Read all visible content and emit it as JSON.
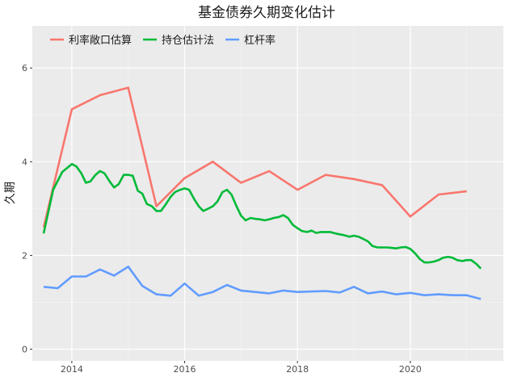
{
  "chart_data": {
    "type": "line",
    "title": "基金债券久期变化估计",
    "xlabel": "",
    "ylabel": "久期",
    "xlim": [
      2013.3,
      2021.65
    ],
    "ylim": [
      -0.25,
      6.9
    ],
    "x_ticks": [
      2014,
      2016,
      2018,
      2020
    ],
    "x_tick_labels": [
      "2014",
      "2016",
      "2018",
      "2020"
    ],
    "y_ticks": [
      0,
      2,
      4,
      6
    ],
    "y_tick_labels": [
      "0",
      "2",
      "4",
      "6"
    ],
    "grid": true,
    "legend_position": "top-left",
    "series": [
      {
        "name": "利率敞口估算",
        "color": "#F8766D",
        "x": [
          2013.5,
          2014.0,
          2014.5,
          2015.0,
          2015.5,
          2016.0,
          2016.5,
          2017.0,
          2017.5,
          2018.0,
          2018.5,
          2019.0,
          2019.5,
          2020.0,
          2020.5,
          2021.0
        ],
        "y": [
          2.6,
          5.12,
          5.42,
          5.58,
          3.05,
          3.65,
          4.0,
          3.55,
          3.8,
          3.4,
          3.72,
          3.63,
          3.5,
          2.83,
          3.3,
          3.37
        ]
      },
      {
        "name": "持仓估计法",
        "color": "#00BA38",
        "x": [
          2013.5,
          2013.67,
          2013.83,
          2014.0,
          2014.08,
          2014.17,
          2014.25,
          2014.33,
          2014.42,
          2014.5,
          2014.58,
          2014.67,
          2014.75,
          2014.83,
          2014.92,
          2015.0,
          2015.08,
          2015.17,
          2015.25,
          2015.33,
          2015.42,
          2015.5,
          2015.58,
          2015.67,
          2015.75,
          2015.83,
          2015.92,
          2016.0,
          2016.08,
          2016.17,
          2016.25,
          2016.33,
          2016.42,
          2016.5,
          2016.58,
          2016.67,
          2016.75,
          2016.83,
          2016.92,
          2017.0,
          2017.08,
          2017.17,
          2017.25,
          2017.33,
          2017.42,
          2017.5,
          2017.58,
          2017.67,
          2017.75,
          2017.83,
          2017.92,
          2018.0,
          2018.08,
          2018.17,
          2018.25,
          2018.33,
          2018.42,
          2018.5,
          2018.58,
          2018.67,
          2018.75,
          2018.83,
          2018.92,
          2019.0,
          2019.08,
          2019.17,
          2019.25,
          2019.33,
          2019.42,
          2019.5,
          2019.58,
          2019.67,
          2019.75,
          2019.83,
          2019.92,
          2020.0,
          2020.08,
          2020.17,
          2020.25,
          2020.33,
          2020.42,
          2020.5,
          2020.58,
          2020.67,
          2020.75,
          2020.83,
          2020.92,
          2021.0,
          2021.08,
          2021.17,
          2021.25
        ],
        "y": [
          2.47,
          3.4,
          3.78,
          3.95,
          3.9,
          3.75,
          3.55,
          3.58,
          3.72,
          3.8,
          3.75,
          3.58,
          3.45,
          3.52,
          3.72,
          3.72,
          3.7,
          3.38,
          3.32,
          3.1,
          3.05,
          2.95,
          2.95,
          3.1,
          3.25,
          3.35,
          3.4,
          3.43,
          3.4,
          3.2,
          3.05,
          2.95,
          3.0,
          3.05,
          3.15,
          3.35,
          3.4,
          3.3,
          3.05,
          2.85,
          2.75,
          2.8,
          2.78,
          2.77,
          2.75,
          2.77,
          2.8,
          2.82,
          2.86,
          2.8,
          2.65,
          2.58,
          2.52,
          2.5,
          2.53,
          2.48,
          2.5,
          2.5,
          2.5,
          2.47,
          2.45,
          2.43,
          2.4,
          2.42,
          2.4,
          2.35,
          2.3,
          2.2,
          2.17,
          2.17,
          2.17,
          2.16,
          2.15,
          2.17,
          2.18,
          2.14,
          2.05,
          1.92,
          1.85,
          1.85,
          1.87,
          1.9,
          1.95,
          1.97,
          1.95,
          1.9,
          1.88,
          1.9,
          1.9,
          1.82,
          1.72
        ]
      },
      {
        "name": "杠杆率",
        "color": "#619CFF",
        "x": [
          2013.5,
          2013.75,
          2014.0,
          2014.25,
          2014.5,
          2014.75,
          2015.0,
          2015.25,
          2015.5,
          2015.75,
          2016.0,
          2016.25,
          2016.5,
          2016.75,
          2017.0,
          2017.25,
          2017.5,
          2017.75,
          2018.0,
          2018.25,
          2018.5,
          2018.75,
          2019.0,
          2019.25,
          2019.5,
          2019.75,
          2020.0,
          2020.25,
          2020.5,
          2020.75,
          2021.0,
          2021.25
        ],
        "y": [
          1.33,
          1.3,
          1.55,
          1.55,
          1.7,
          1.57,
          1.76,
          1.35,
          1.17,
          1.14,
          1.4,
          1.14,
          1.22,
          1.37,
          1.25,
          1.22,
          1.19,
          1.25,
          1.22,
          1.23,
          1.24,
          1.21,
          1.33,
          1.19,
          1.23,
          1.17,
          1.2,
          1.15,
          1.17,
          1.15,
          1.15,
          1.07
        ]
      }
    ]
  }
}
